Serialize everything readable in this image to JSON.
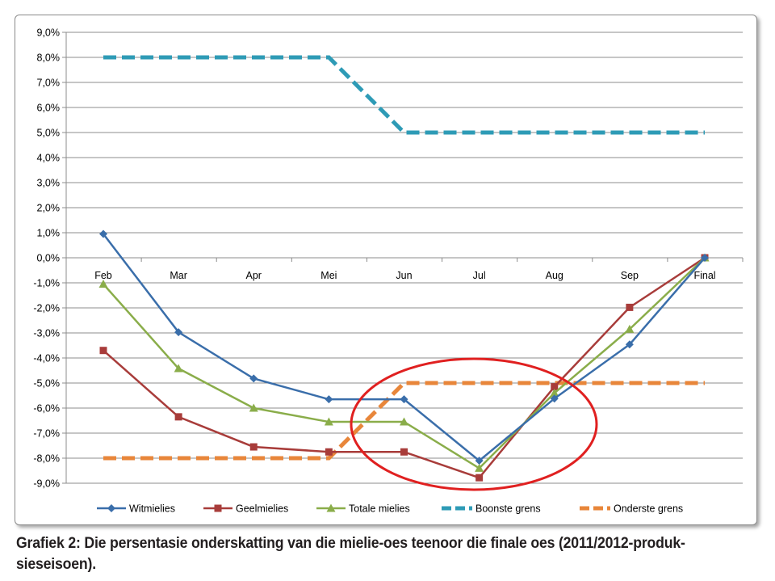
{
  "caption": "Grafiek 2: Die persentasie onderskatting van die mielie-oes teenoor die finale oes (2011/2012-produk-sieseisoen).",
  "chart_data": {
    "type": "line",
    "categories": [
      "Feb",
      "Mar",
      "Apr",
      "Mei",
      "Jun",
      "Jul",
      "Aug",
      "Sep",
      "Final"
    ],
    "ylim": [
      -9,
      9
    ],
    "yticks": [
      "9,0%",
      "8,0%",
      "7,0%",
      "6,0%",
      "5,0%",
      "4,0%",
      "3,0%",
      "2,0%",
      "1,0%",
      "0,0%",
      "-1,0%",
      "-2,0%",
      "-3,0%",
      "-4,0%",
      "-5,0%",
      "-6,0%",
      "-7,0%",
      "-8,0%",
      "-9,0%"
    ],
    "grid": true,
    "legend_position": "bottom",
    "series": [
      {
        "name": "Witmielies",
        "color": "#3a6eaa",
        "marker": "diamond",
        "dashed": false,
        "values": [
          0.95,
          -2.97,
          -4.82,
          -5.65,
          -5.65,
          -8.1,
          -5.62,
          -3.46,
          0.0
        ]
      },
      {
        "name": "Geelmielies",
        "color": "#a83c3a",
        "marker": "square",
        "dashed": false,
        "values": [
          -3.7,
          -6.35,
          -7.55,
          -7.75,
          -7.75,
          -8.78,
          -5.15,
          -1.98,
          0.0
        ]
      },
      {
        "name": "Totale mielies",
        "color": "#8aad4a",
        "marker": "triangle",
        "dashed": false,
        "values": [
          -1.05,
          -4.42,
          -6.0,
          -6.55,
          -6.55,
          -8.4,
          -5.4,
          -2.85,
          0.0
        ]
      },
      {
        "name": "Boonste grens",
        "color": "#2e9bb6",
        "marker": "none",
        "dashed": true,
        "values": [
          8,
          8,
          8,
          8,
          5,
          5,
          5,
          5,
          5
        ]
      },
      {
        "name": "Onderste grens",
        "color": "#e8863a",
        "marker": "none",
        "dashed": true,
        "values": [
          -8,
          -8,
          -8,
          -8,
          -5,
          -5,
          -5,
          -5,
          -5
        ]
      }
    ],
    "annotation": {
      "shape": "ellipse",
      "color": "#e02020"
    }
  }
}
